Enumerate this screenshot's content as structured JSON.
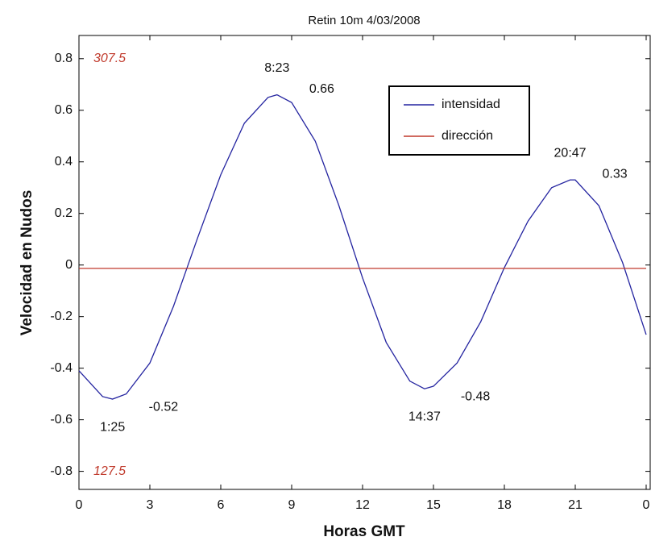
{
  "chart_data": {
    "type": "line",
    "title": "Retin 10m 4/03/2008",
    "xlabel": "Horas GMT",
    "ylabel": "Velocidad en Nudos",
    "x": [
      0,
      1,
      1.42,
      2,
      3,
      4,
      5,
      6,
      7,
      8,
      8.38,
      9,
      10,
      11,
      12,
      13,
      14,
      14.62,
      15,
      16,
      17,
      18,
      19,
      20,
      20.78,
      21,
      22,
      23,
      24
    ],
    "series": [
      {
        "name": "intensidad",
        "color": "#2424a0",
        "values": [
          -0.41,
          -0.51,
          -0.52,
          -0.5,
          -0.38,
          -0.16,
          0.1,
          0.35,
          0.55,
          0.65,
          0.66,
          0.63,
          0.48,
          0.23,
          -0.05,
          -0.3,
          -0.45,
          -0.48,
          -0.47,
          -0.38,
          -0.22,
          -0.01,
          0.17,
          0.3,
          0.33,
          0.33,
          0.23,
          0.01,
          -0.27
        ]
      },
      {
        "name": "dirección",
        "color": "#c0392b",
        "axis": "y2",
        "x": [
          0,
          24
        ],
        "values": [
          216,
          216
        ]
      }
    ],
    "annotations": [
      {
        "time": "1:25",
        "x": 1.42,
        "value": -0.52
      },
      {
        "time": "8:23",
        "x": 8.38,
        "value": 0.66
      },
      {
        "time": "14:37",
        "x": 14.62,
        "value": -0.48
      },
      {
        "time": "20:47",
        "x": 20.78,
        "value": 0.33
      }
    ],
    "xlim": [
      0,
      24
    ],
    "xticks": [
      0,
      3,
      6,
      9,
      12,
      15,
      18,
      21,
      {
        "value": 24,
        "label": "0"
      }
    ],
    "ylim": [
      -0.87,
      0.89
    ],
    "yticks": [
      -0.8,
      -0.6,
      -0.4,
      -0.2,
      0,
      0.2,
      0.4,
      0.6,
      0.8
    ],
    "y2lim": [
      119.6,
      317.6
    ],
    "y2ticks": [
      127.5,
      307.5
    ]
  }
}
